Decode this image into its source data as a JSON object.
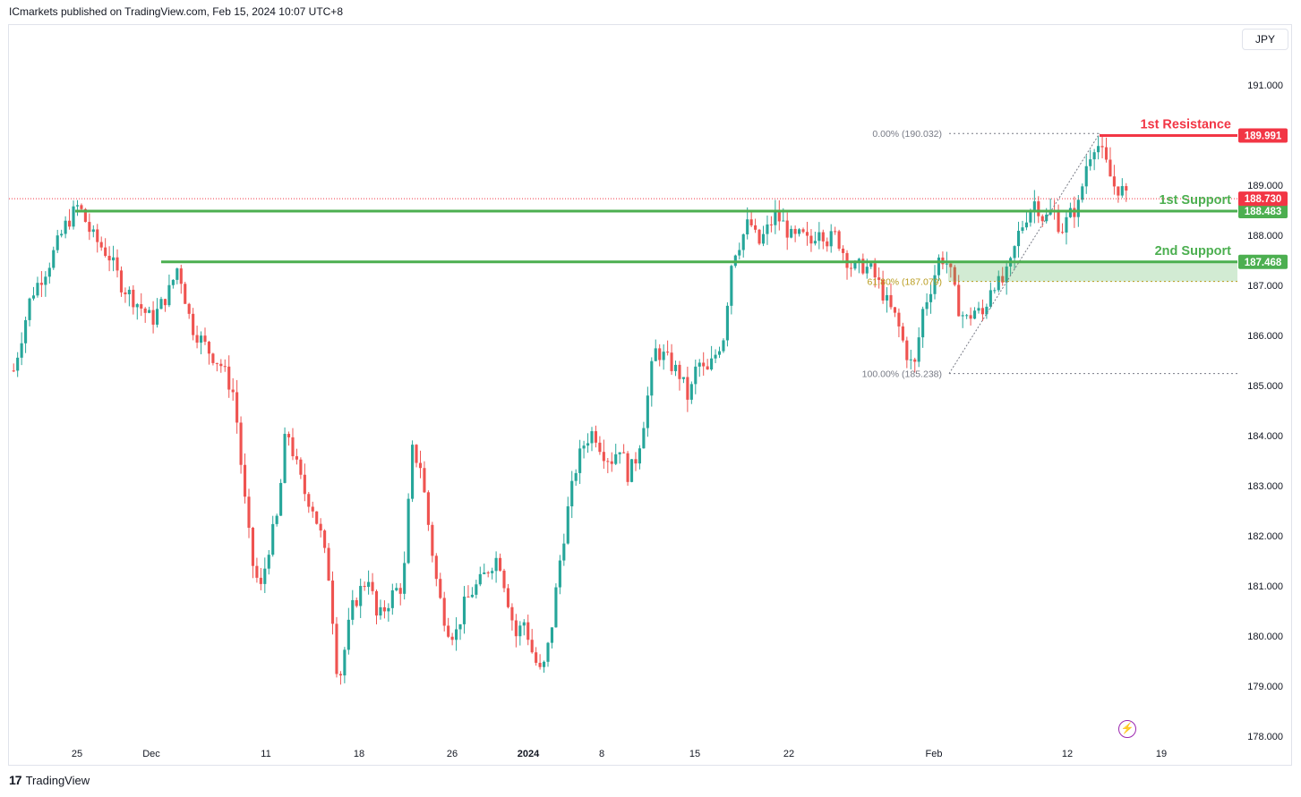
{
  "header": {
    "text": "ICmarkets published on TradingView.com, Feb 15, 2024 10:07 UTC+8"
  },
  "currency": "JPY",
  "footer": {
    "brand": "TradingView"
  },
  "icons": {
    "logo": "tradingview-logo-icon",
    "alert": "lightning-bolt-icon"
  },
  "colors": {
    "up": "#26a69a",
    "down": "#ef5350",
    "support": "#4caf50",
    "resistance": "#f23645",
    "fib": "#b89b1c",
    "current": "#f23645"
  },
  "chart_data": {
    "type": "candlestick",
    "symbol_currency": "JPY",
    "y_ticks": [
      "191.000",
      "190.000",
      "189.000",
      "188.000",
      "187.000",
      "186.000",
      "185.000",
      "184.000",
      "183.000",
      "182.000",
      "181.000",
      "180.000",
      "179.000",
      "178.000"
    ],
    "ylim": [
      177.7,
      191.6
    ],
    "x_labels": [
      "25",
      "Dec",
      "11",
      "18",
      "26",
      "2024",
      "8",
      "15",
      "22",
      "Feb",
      "12",
      "19"
    ],
    "current_price": "188.730",
    "levels": [
      {
        "label": "1st Resistance",
        "value": "189.991",
        "type": "resistance"
      },
      {
        "label": "1st Support",
        "value": "188.483",
        "type": "support"
      },
      {
        "label": "2nd Support",
        "value": "187.468",
        "type": "support"
      }
    ],
    "fibonacci": [
      {
        "text": "0.00% (190.032)",
        "value": 190.032
      },
      {
        "text": "61.80% (187.079)",
        "value": 187.079
      },
      {
        "text": "100.00% (185.238)",
        "value": 185.238
      }
    ],
    "support_zone": [
      187.079,
      187.468
    ],
    "price_path": [
      [
        0,
        185.3
      ],
      [
        4,
        186.8
      ],
      [
        8,
        187.4
      ],
      [
        12,
        188.2
      ],
      [
        15,
        188.6
      ],
      [
        18,
        188.0
      ],
      [
        22,
        187.6
      ],
      [
        25,
        187.0
      ],
      [
        28,
        186.7
      ],
      [
        32,
        186.3
      ],
      [
        36,
        186.9
      ],
      [
        38,
        187.4
      ],
      [
        41,
        186.2
      ],
      [
        45,
        185.7
      ],
      [
        48,
        185.4
      ],
      [
        51,
        184.8
      ],
      [
        53,
        183.0
      ],
      [
        55,
        181.5
      ],
      [
        57,
        180.9
      ],
      [
        59,
        181.8
      ],
      [
        61,
        182.4
      ],
      [
        63,
        184.2
      ],
      [
        65,
        183.5
      ],
      [
        67,
        182.9
      ],
      [
        69,
        182.6
      ],
      [
        71,
        182.0
      ],
      [
        73,
        181.1
      ],
      [
        75,
        179.0
      ],
      [
        76,
        179.5
      ],
      [
        78,
        180.5
      ],
      [
        80,
        180.9
      ],
      [
        82,
        181.2
      ],
      [
        84,
        180.3
      ],
      [
        86,
        180.6
      ],
      [
        88,
        180.9
      ],
      [
        90,
        181.0
      ],
      [
        92,
        183.7
      ],
      [
        94,
        183.4
      ],
      [
        96,
        182.1
      ],
      [
        98,
        180.9
      ],
      [
        100,
        180.2
      ],
      [
        102,
        180.0
      ],
      [
        104,
        180.6
      ],
      [
        106,
        180.9
      ],
      [
        108,
        181.1
      ],
      [
        110,
        181.4
      ],
      [
        112,
        181.6
      ],
      [
        114,
        180.8
      ],
      [
        116,
        180.0
      ],
      [
        118,
        180.3
      ],
      [
        120,
        179.6
      ],
      [
        122,
        179.2
      ],
      [
        124,
        180.0
      ],
      [
        126,
        181.4
      ],
      [
        128,
        182.5
      ],
      [
        130,
        183.4
      ],
      [
        132,
        183.9
      ],
      [
        134,
        184.1
      ],
      [
        136,
        183.7
      ],
      [
        138,
        183.5
      ],
      [
        140,
        183.8
      ],
      [
        142,
        183.2
      ],
      [
        144,
        183.6
      ],
      [
        146,
        184.5
      ],
      [
        148,
        185.7
      ],
      [
        150,
        185.6
      ],
      [
        152,
        185.4
      ],
      [
        154,
        185.2
      ],
      [
        156,
        184.7
      ],
      [
        158,
        185.5
      ],
      [
        160,
        185.2
      ],
      [
        162,
        185.6
      ],
      [
        164,
        186.0
      ],
      [
        166,
        187.6
      ],
      [
        168,
        187.9
      ],
      [
        170,
        188.3
      ],
      [
        172,
        187.8
      ],
      [
        174,
        188.1
      ],
      [
        176,
        188.4
      ],
      [
        178,
        188.2
      ],
      [
        180,
        187.9
      ],
      [
        182,
        188.0
      ],
      [
        184,
        187.8
      ],
      [
        186,
        188.2
      ],
      [
        188,
        187.9
      ],
      [
        190,
        188.0
      ],
      [
        192,
        187.6
      ],
      [
        194,
        187.3
      ],
      [
        196,
        187.4
      ],
      [
        198,
        187.3
      ],
      [
        200,
        187.0
      ],
      [
        202,
        186.6
      ],
      [
        204,
        186.3
      ],
      [
        206,
        185.7
      ],
      [
        208,
        185.3
      ],
      [
        210,
        186.5
      ],
      [
        212,
        187.0
      ],
      [
        214,
        187.6
      ],
      [
        216,
        187.4
      ],
      [
        218,
        186.6
      ],
      [
        220,
        186.3
      ],
      [
        222,
        186.5
      ],
      [
        224,
        186.4
      ],
      [
        226,
        187.1
      ],
      [
        228,
        187.0
      ],
      [
        230,
        187.3
      ],
      [
        232,
        188.0
      ],
      [
        234,
        188.4
      ],
      [
        236,
        188.7
      ],
      [
        238,
        188.3
      ],
      [
        240,
        188.5
      ],
      [
        242,
        188.1
      ],
      [
        244,
        188.4
      ],
      [
        246,
        188.6
      ],
      [
        248,
        189.5
      ],
      [
        250,
        189.9
      ],
      [
        252,
        189.5
      ],
      [
        254,
        189.0
      ],
      [
        256,
        188.9
      ],
      [
        257,
        188.73
      ]
    ]
  }
}
